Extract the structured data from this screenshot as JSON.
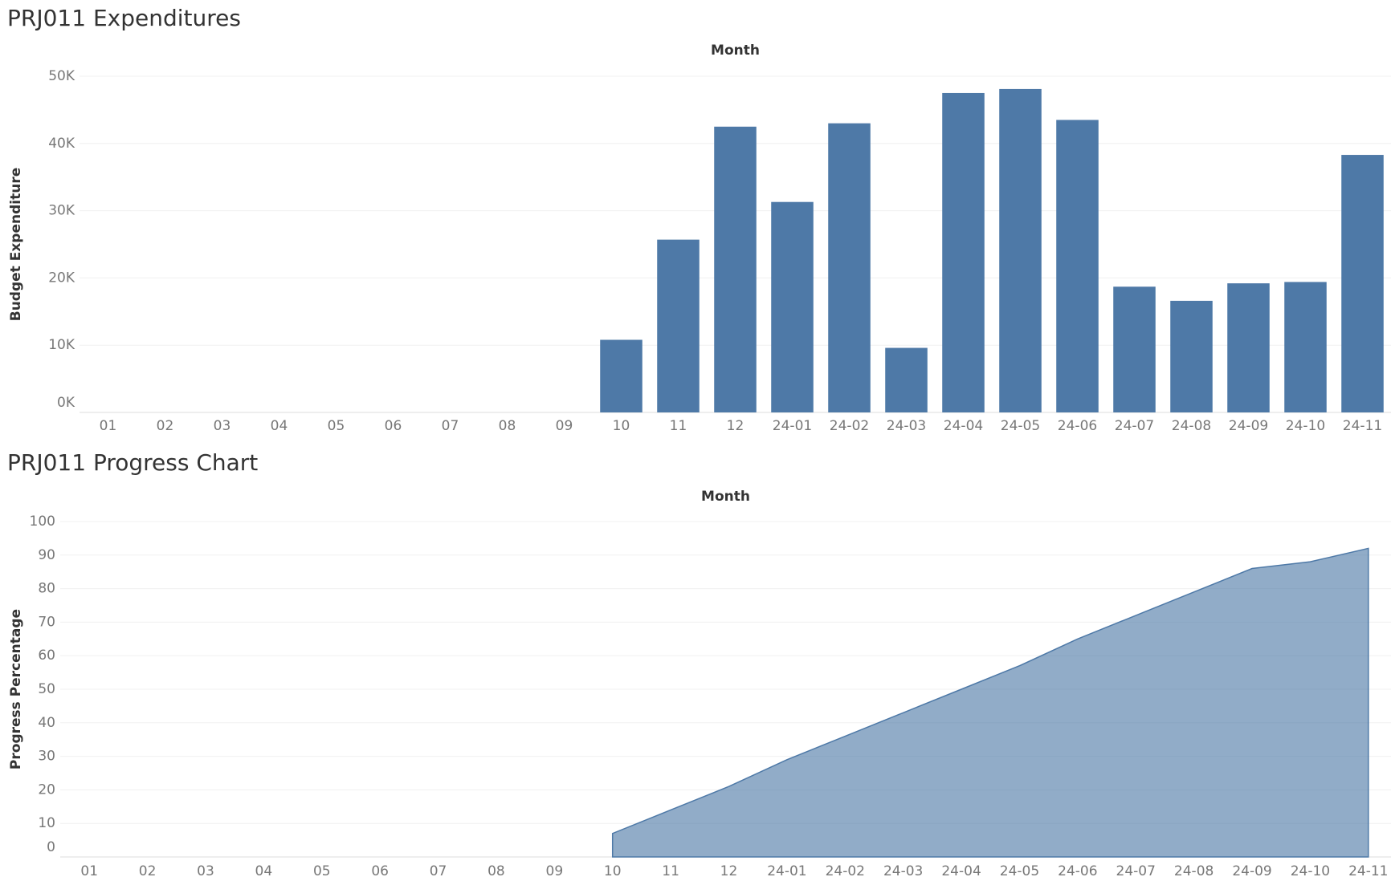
{
  "chart_data": [
    {
      "type": "bar",
      "title": "PRJ011 Expenditures",
      "x_label": "Month",
      "y_label": "Budget Expenditure",
      "categories": [
        "01",
        "02",
        "03",
        "04",
        "05",
        "06",
        "07",
        "08",
        "09",
        "10",
        "11",
        "12",
        "24-01",
        "24-02",
        "24-03",
        "24-04",
        "24-05",
        "24-06",
        "24-07",
        "24-08",
        "24-09",
        "24-10",
        "24-11"
      ],
      "values": [
        null,
        null,
        null,
        null,
        null,
        null,
        null,
        null,
        null,
        10800,
        25700,
        42500,
        31300,
        43000,
        9600,
        47500,
        48100,
        43500,
        18700,
        16600,
        19200,
        19400,
        38300
      ],
      "color": "#4e79a7",
      "ylim": [
        0,
        50000
      ],
      "yticks": [
        {
          "value": 0,
          "label": "0K"
        },
        {
          "value": 10000,
          "label": "10K"
        },
        {
          "value": 20000,
          "label": "20K"
        },
        {
          "value": 30000,
          "label": "30K"
        },
        {
          "value": 40000,
          "label": "40K"
        },
        {
          "value": 50000,
          "label": "50K"
        }
      ],
      "grid": true
    },
    {
      "type": "area",
      "title": "PRJ011 Progress Chart",
      "x_label": "Month",
      "y_label": "Progress Percentage",
      "categories": [
        "01",
        "02",
        "03",
        "04",
        "05",
        "06",
        "07",
        "08",
        "09",
        "10",
        "11",
        "12",
        "24-01",
        "24-02",
        "24-03",
        "24-04",
        "24-05",
        "24-06",
        "24-07",
        "24-08",
        "24-09",
        "24-10",
        "24-11"
      ],
      "values": [
        null,
        null,
        null,
        null,
        null,
        null,
        null,
        null,
        null,
        7,
        14,
        21,
        29,
        36,
        43,
        50,
        57,
        65,
        72,
        79,
        86,
        88,
        92
      ],
      "color": "#4e79a7",
      "ylim": [
        0,
        100
      ],
      "yticks": [
        0,
        10,
        20,
        30,
        40,
        50,
        60,
        70,
        80,
        90,
        100
      ],
      "grid": true
    }
  ]
}
